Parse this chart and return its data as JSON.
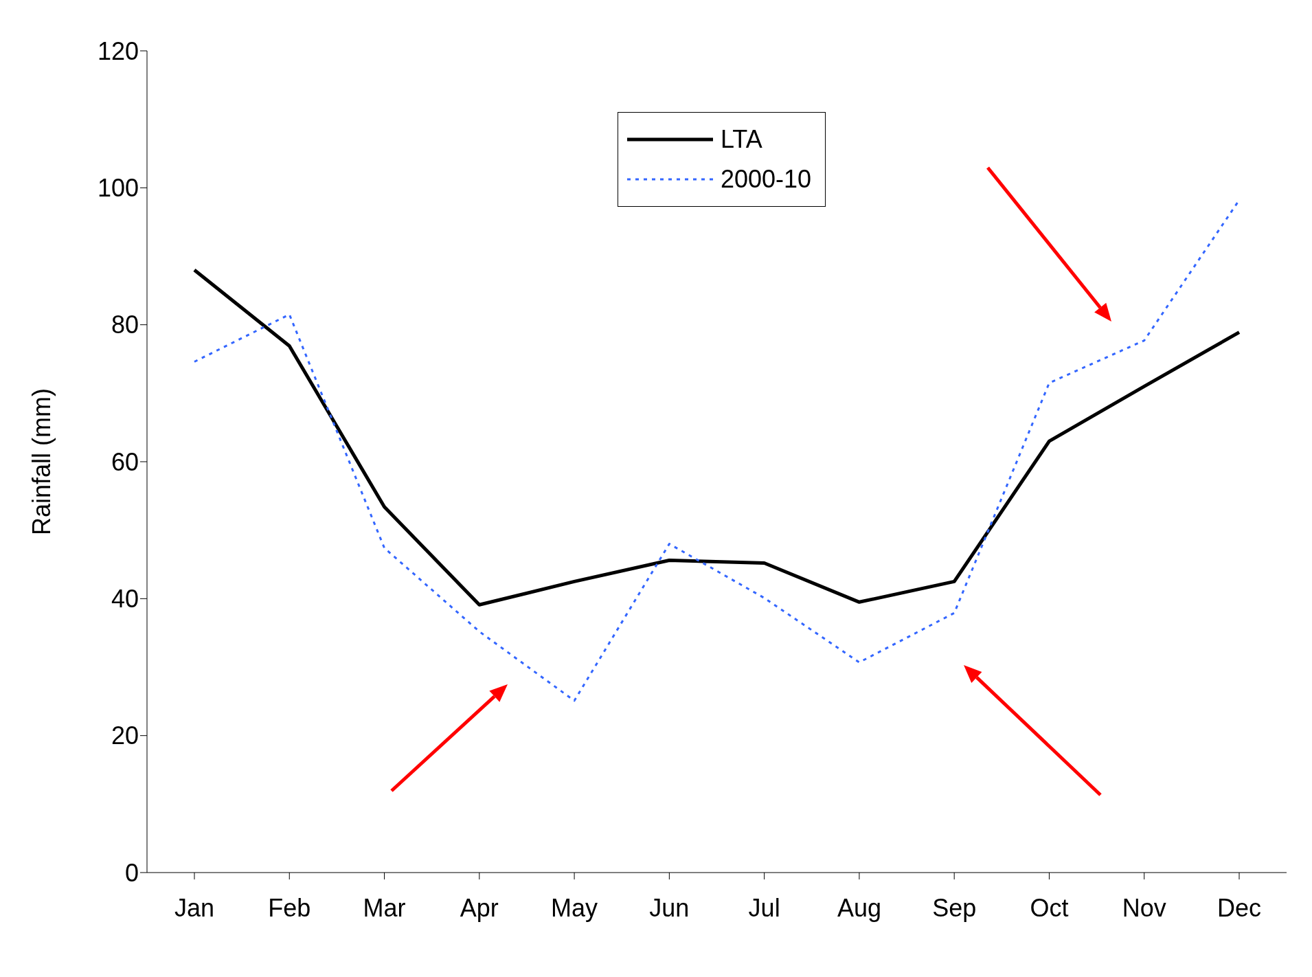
{
  "chart_data": {
    "type": "line",
    "ylabel": "Rainfall (mm)",
    "categories": [
      "Jan",
      "Feb",
      "Mar",
      "Apr",
      "May",
      "Jun",
      "Jul",
      "Aug",
      "Sep",
      "Oct",
      "Nov",
      "Dec"
    ],
    "ylim": [
      0,
      120
    ],
    "yticks": [
      0,
      20,
      40,
      60,
      80,
      100,
      120
    ],
    "legend": "top",
    "marker": "none",
    "series": [
      {
        "name": "LTA",
        "color": "#000000",
        "line_style": "solid",
        "values": [
          88.0,
          76.9,
          53.4,
          39.1,
          42.5,
          45.6,
          45.2,
          39.5,
          42.5,
          63.0,
          71.0,
          78.9
        ]
      },
      {
        "name": "2000-10",
        "color": "#3366ff",
        "line_style": "dotted",
        "values": [
          74.6,
          81.5,
          47.4,
          35.2,
          25.1,
          48.0,
          40.1,
          30.7,
          37.9,
          71.5,
          77.7,
          98.2
        ]
      }
    ]
  }
}
